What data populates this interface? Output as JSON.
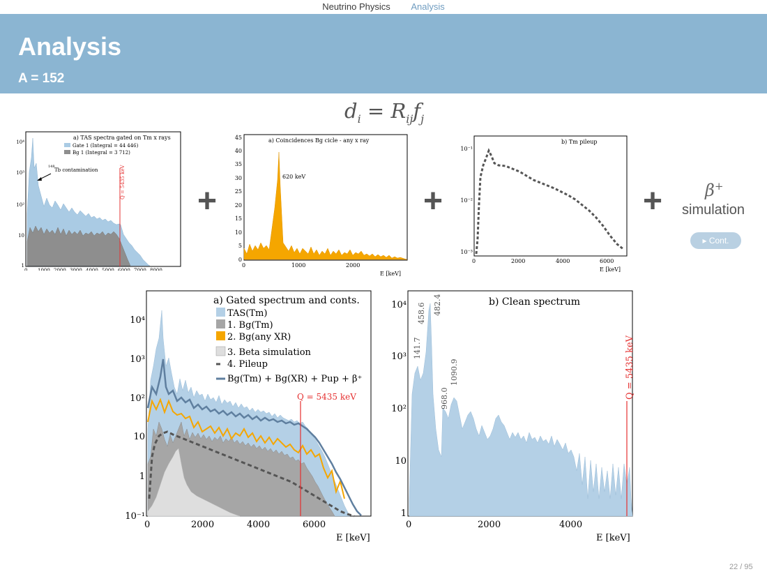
{
  "nav": {
    "section": "Neutrino Physics",
    "subsection": "Analysis"
  },
  "slide": {
    "title": "Analysis",
    "subtitle": "A = 152",
    "page": "22 / 95"
  },
  "formula": {
    "d": "d",
    "di": "i",
    "eq": " = ",
    "R": "R",
    "Rij": "ij",
    "f": "f",
    "fj": "j"
  },
  "beta": {
    "symbol": "β",
    "sup": "+",
    "label": "simulation"
  },
  "cont_button": "Cont.",
  "chart_data": [
    {
      "type": "area",
      "title": "a) TAS spectra gated on Tm x rays",
      "legend": [
        "Gate 1 (Integral = 44 446)",
        "Bg 1    (Integral =   3 712)"
      ],
      "annotation_tb": "Tb contamination",
      "annotation_tb_mass": "148",
      "annotation_q": "Q = 5435 keV",
      "xticks": [
        "0",
        "1000",
        "2000",
        "3000",
        "4000",
        "5000",
        "6000",
        "7000",
        "8000"
      ],
      "yticks": [
        "1",
        "10",
        "10²",
        "10³",
        "10⁴"
      ],
      "xlim": [
        0,
        8000
      ],
      "yscale": "log"
    },
    {
      "type": "bar",
      "title": "a) Coincidences Bg cicle - any x ray",
      "annotation": "620 keV",
      "xlabel": "E [keV]",
      "xticks": [
        "0",
        "1000",
        "2000"
      ],
      "yticks": [
        "0",
        "5",
        "10",
        "15",
        "20",
        "25",
        "30",
        "35",
        "40",
        "45"
      ],
      "xlim": [
        0,
        2900
      ],
      "ylim": [
        0,
        45
      ]
    },
    {
      "type": "line",
      "title": "b) Tm pileup",
      "xlabel": "E [keV]",
      "xticks": [
        "0",
        "2000",
        "4000",
        "6000"
      ],
      "yticks": [
        "10⁻³",
        "10⁻²",
        "10⁻¹"
      ],
      "yscale": "log",
      "xlim": [
        0,
        6700
      ]
    },
    {
      "type": "area",
      "title": "a) Gated spectrum and conts.",
      "legend": [
        "TAS(Tm)",
        "1. Bg(Tm)",
        "2. Bg(any XR)",
        "3. Beta simulation",
        "4. Pileup",
        "Bg(Tm) + Bg(XR) + Pup + β⁺"
      ],
      "annotation_q": "Q = 5435 keV",
      "xlabel": "E [keV]",
      "xticks": [
        "0",
        "2000",
        "4000",
        "6000"
      ],
      "yticks": [
        "10⁻¹",
        "1",
        "10",
        "10²",
        "10³",
        "10⁴"
      ],
      "xlim": [
        0,
        7900
      ],
      "yscale": "log",
      "colors": {
        "tas": "#b4d0e6",
        "bg_tm": "#a6a6a6",
        "bg_xr": "#f5a600",
        "beta": "#dedede",
        "pileup": "#555555",
        "sum": "#5f7f9f"
      }
    },
    {
      "type": "bar",
      "title": "b) Clean spectrum",
      "peaks": [
        "141.7",
        "458.6",
        "482.4",
        "968.0",
        "1090.9"
      ],
      "annotation_q": "Q = 5435 keV",
      "xlabel": "E [keV]",
      "xticks": [
        "0",
        "2000",
        "4000"
      ],
      "yticks": [
        "1",
        "10",
        "10²",
        "10³",
        "10⁴"
      ],
      "xlim": [
        0,
        5500
      ],
      "yscale": "log"
    }
  ]
}
